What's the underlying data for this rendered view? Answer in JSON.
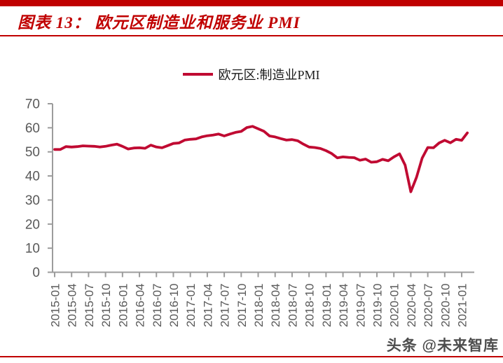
{
  "header": {
    "title": "图表 13： 欧元区制造业和服务业 PMI",
    "accent_color": "#C00000"
  },
  "legend": {
    "label": "欧元区:制造业PMI"
  },
  "footer": {
    "watermark": "头条 @未来智库"
  },
  "chart_data": {
    "type": "line",
    "title": "欧元区:制造业PMI",
    "x": [
      "2015-01",
      "2015-02",
      "2015-03",
      "2015-04",
      "2015-05",
      "2015-06",
      "2015-07",
      "2015-08",
      "2015-09",
      "2015-10",
      "2015-11",
      "2015-12",
      "2016-01",
      "2016-02",
      "2016-03",
      "2016-04",
      "2016-05",
      "2016-06",
      "2016-07",
      "2016-08",
      "2016-09",
      "2016-10",
      "2016-11",
      "2016-12",
      "2017-01",
      "2017-02",
      "2017-03",
      "2017-04",
      "2017-05",
      "2017-06",
      "2017-07",
      "2017-08",
      "2017-09",
      "2017-10",
      "2017-11",
      "2017-12",
      "2018-01",
      "2018-02",
      "2018-03",
      "2018-04",
      "2018-05",
      "2018-06",
      "2018-07",
      "2018-08",
      "2018-09",
      "2018-10",
      "2018-11",
      "2018-12",
      "2019-01",
      "2019-02",
      "2019-03",
      "2019-04",
      "2019-05",
      "2019-06",
      "2019-07",
      "2019-08",
      "2019-09",
      "2019-10",
      "2019-11",
      "2019-12",
      "2020-01",
      "2020-02",
      "2020-03",
      "2020-04",
      "2020-05",
      "2020-06",
      "2020-07",
      "2020-08",
      "2020-09",
      "2020-10",
      "2020-11",
      "2020-12",
      "2021-01",
      "2021-02"
    ],
    "x_tick_every": 3,
    "x_tick_labels": [
      "2015-01",
      "2015-04",
      "2015-07",
      "2015-10",
      "2016-01",
      "2016-04",
      "2016-07",
      "2016-10",
      "2017-01",
      "2017-04",
      "2017-07",
      "2017-10",
      "2018-01",
      "2018-04",
      "2018-07",
      "2018-10",
      "2019-01",
      "2019-04",
      "2019-07",
      "2019-10",
      "2020-01",
      "2020-04",
      "2020-07",
      "2020-10",
      "2021-01"
    ],
    "y_ticks": [
      0,
      10,
      20,
      30,
      40,
      50,
      60,
      70
    ],
    "ylim": [
      0,
      70
    ],
    "grid": false,
    "legend_position": "top-center",
    "axis_color": "#9C9C9C",
    "tick_label_color": "#595959",
    "series": [
      {
        "name": "欧元区:制造业PMI",
        "color": "#C00A32",
        "values": [
          51.0,
          51.0,
          52.2,
          52.0,
          52.2,
          52.5,
          52.4,
          52.3,
          52.0,
          52.3,
          52.8,
          53.2,
          52.3,
          51.2,
          51.6,
          51.7,
          51.5,
          52.8,
          52.0,
          51.7,
          52.6,
          53.5,
          53.7,
          54.9,
          55.2,
          55.4,
          56.2,
          56.7,
          57.0,
          57.4,
          56.6,
          57.4,
          58.1,
          58.5,
          60.1,
          60.6,
          59.6,
          58.6,
          56.6,
          56.2,
          55.5,
          54.9,
          55.1,
          54.6,
          53.2,
          52.0,
          51.8,
          51.4,
          50.5,
          49.3,
          47.5,
          47.9,
          47.7,
          47.6,
          46.5,
          47.0,
          45.7,
          45.9,
          46.9,
          46.3,
          47.9,
          49.2,
          44.5,
          33.4,
          39.4,
          47.4,
          51.8,
          51.7,
          53.7,
          54.8,
          53.8,
          55.2,
          54.8,
          57.9
        ]
      }
    ]
  }
}
